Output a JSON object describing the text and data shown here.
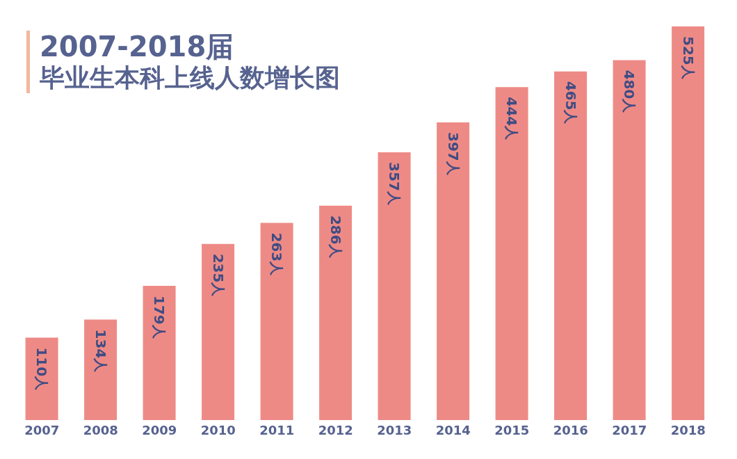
{
  "chart_data": {
    "type": "bar",
    "title": "2007-2018届",
    "subtitle": "毕业生本科上线人数增长图",
    "categories": [
      "2007",
      "2008",
      "2009",
      "2010",
      "2011",
      "2012",
      "2013",
      "2014",
      "2015",
      "2016",
      "2017",
      "2018"
    ],
    "values": [
      110,
      134,
      179,
      235,
      263,
      286,
      357,
      397,
      444,
      465,
      480,
      525
    ],
    "value_labels": [
      "110人",
      "134人",
      "179人",
      "235人",
      "263人",
      "286人",
      "357人",
      "397人",
      "444人",
      "465人",
      "480人",
      "525人"
    ],
    "color": "#ee8a85"
  }
}
